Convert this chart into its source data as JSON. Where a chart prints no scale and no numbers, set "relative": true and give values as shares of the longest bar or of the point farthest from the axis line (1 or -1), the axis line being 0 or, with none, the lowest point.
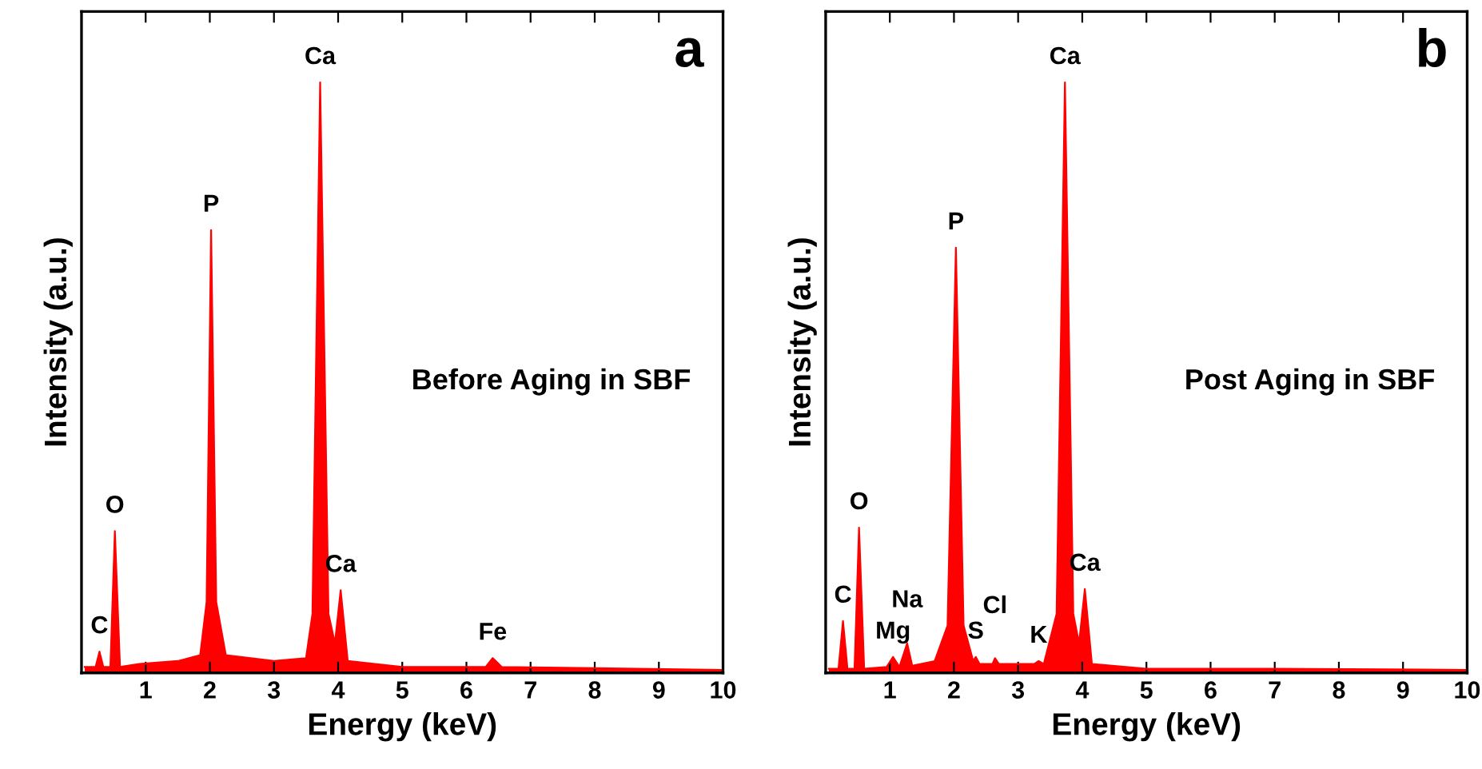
{
  "chart_data": [
    {
      "type": "area",
      "relative": true,
      "xlabel": "Energy (keV)",
      "ylabel": "Intensity (a.u.)",
      "xlim": [
        0,
        10
      ],
      "xticks": [
        1,
        2,
        3,
        4,
        5,
        6,
        7,
        8,
        9,
        10
      ],
      "tick_labels": "x",
      "grid": false,
      "series": [
        {
          "color": "#ff0000",
          "x": [
            0.05,
            0.22,
            0.28,
            0.34,
            0.45,
            0.52,
            0.6,
            0.9,
            1.5,
            1.85,
            1.95,
            2.02,
            2.1,
            2.25,
            3.0,
            3.5,
            3.6,
            3.72,
            3.85,
            3.95,
            4.04,
            4.15,
            5.0,
            6.3,
            6.41,
            6.55,
            8.0,
            10.0
          ],
          "values": [
            0.01,
            0.01,
            0.036,
            0.01,
            0.01,
            0.24,
            0.01,
            0.015,
            0.02,
            0.03,
            0.12,
            0.75,
            0.12,
            0.03,
            0.02,
            0.025,
            0.1,
            1.0,
            0.1,
            0.05,
            0.14,
            0.02,
            0.01,
            0.01,
            0.025,
            0.01,
            0.008,
            0.005
          ]
        }
      ],
      "annotations": [
        "a",
        "Before Aging in SBF",
        {
          "text": "C",
          "x": 0.28,
          "y": 0.036
        },
        {
          "text": "O",
          "x": 0.52,
          "y": 0.24
        },
        {
          "text": "P",
          "x": 2.02,
          "y": 0.75
        },
        {
          "text": "Ca",
          "x": 3.72,
          "y": 1.0
        },
        {
          "text": "Ca",
          "x": 4.04,
          "y": 0.14
        },
        {
          "text": "Fe",
          "x": 6.41,
          "y": 0.025
        }
      ]
    },
    {
      "type": "area",
      "relative": true,
      "xlabel": "Energy (keV)",
      "ylabel": "Intensity (a.u.)",
      "xlim": [
        0,
        10
      ],
      "xticks": [
        1,
        2,
        3,
        4,
        5,
        6,
        7,
        8,
        9,
        10
      ],
      "tick_labels": "x",
      "grid": false,
      "series": [
        {
          "color": "#ff0000",
          "x": [
            0.05,
            0.2,
            0.27,
            0.34,
            0.45,
            0.52,
            0.6,
            0.95,
            1.05,
            1.15,
            1.27,
            1.35,
            1.7,
            1.9,
            2.03,
            2.15,
            2.3,
            2.34,
            2.4,
            2.6,
            2.64,
            2.7,
            3.25,
            3.32,
            3.4,
            3.6,
            3.73,
            3.86,
            3.95,
            4.04,
            4.15,
            5.0,
            7.0,
            10.0
          ],
          "values": [
            0.007,
            0.007,
            0.088,
            0.007,
            0.007,
            0.246,
            0.007,
            0.01,
            0.027,
            0.01,
            0.05,
            0.012,
            0.02,
            0.08,
            0.72,
            0.08,
            0.02,
            0.027,
            0.015,
            0.015,
            0.025,
            0.015,
            0.015,
            0.02,
            0.015,
            0.1,
            1.0,
            0.1,
            0.05,
            0.142,
            0.015,
            0.007,
            0.007,
            0.005
          ]
        }
      ],
      "annotations": [
        "b",
        "Post Aging in SBF",
        {
          "text": "C",
          "x": 0.27,
          "y": 0.088
        },
        {
          "text": "O",
          "x": 0.52,
          "y": 0.246
        },
        {
          "text": "Mg",
          "x": 1.05,
          "y": 0.027
        },
        {
          "text": "Na",
          "x": 1.27,
          "y": 0.05
        },
        {
          "text": "P",
          "x": 2.03,
          "y": 0.72
        },
        {
          "text": "S",
          "x": 2.34,
          "y": 0.027
        },
        {
          "text": "Cl",
          "x": 2.64,
          "y": 0.025
        },
        {
          "text": "K",
          "x": 3.32,
          "y": 0.02
        },
        {
          "text": "Ca",
          "x": 3.73,
          "y": 1.0
        },
        {
          "text": "Ca",
          "x": 4.04,
          "y": 0.142
        }
      ]
    }
  ]
}
